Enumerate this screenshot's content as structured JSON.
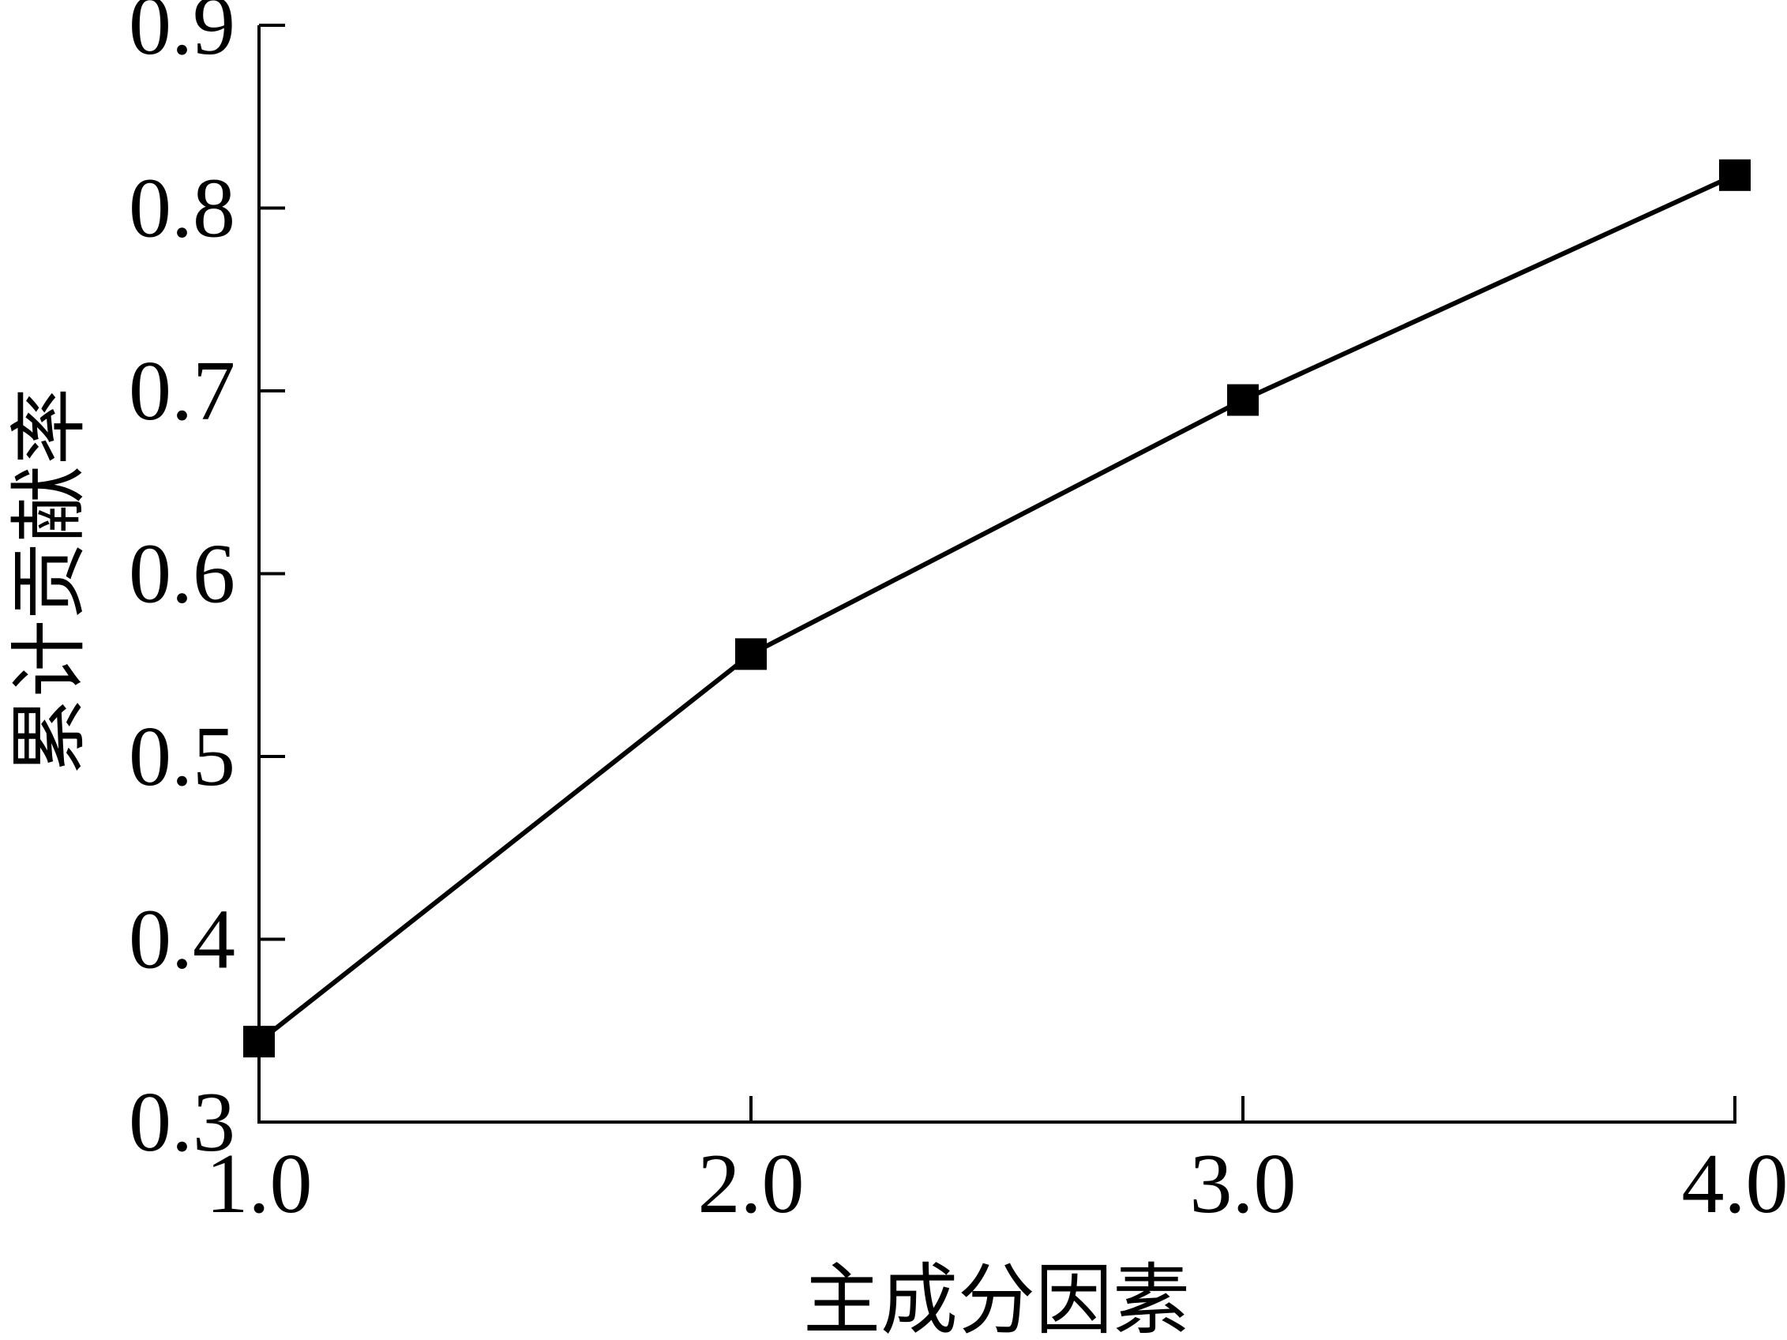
{
  "chart_data": {
    "type": "line",
    "x_label": "主成分因素",
    "y_label": "累计贡献率",
    "x": [
      1,
      2,
      3,
      4
    ],
    "series": [
      {
        "name": "累计贡献率",
        "color": "#000000",
        "values": [
          0.344,
          0.556,
          0.695,
          0.818
        ]
      }
    ],
    "xlim": [
      1,
      4
    ],
    "xticks": [
      {
        "value": 1,
        "label": "1.0"
      },
      {
        "value": 2,
        "label": "2.0"
      },
      {
        "value": 3,
        "label": "3.0"
      },
      {
        "value": 4,
        "label": "4.0"
      }
    ],
    "ylim": [
      0.3,
      0.9
    ],
    "yticks": [
      0.3,
      0.4,
      0.5,
      0.6,
      0.7,
      0.8,
      0.9
    ],
    "grid": false,
    "legend": false,
    "marker": "square"
  }
}
